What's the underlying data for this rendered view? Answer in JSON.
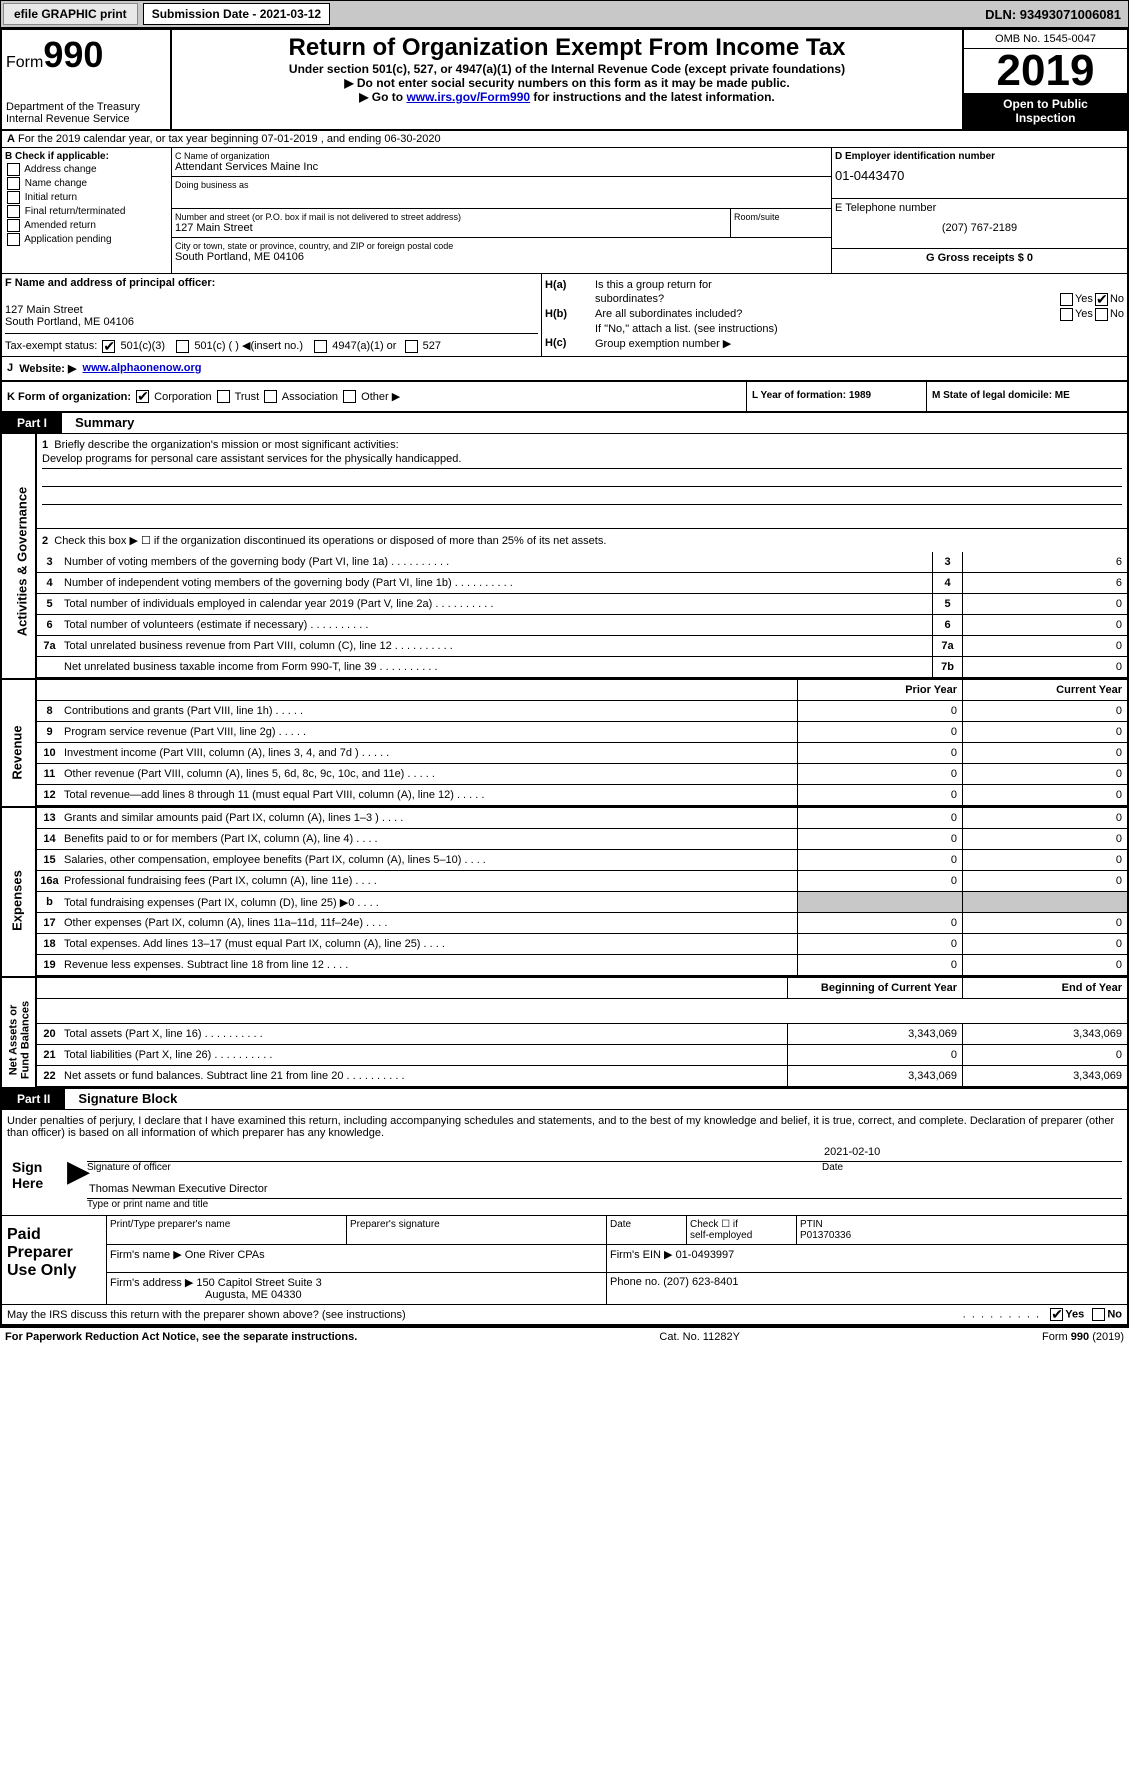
{
  "topbar": {
    "efile": "efile GRAPHIC print",
    "submission": "Submission Date - 2021-03-12",
    "dln": "DLN: 93493071006081"
  },
  "header": {
    "form_prefix": "Form",
    "form_num": "990",
    "title": "Return of Organization Exempt From Income Tax",
    "subtitle": "Under section 501(c), 527, or 4947(a)(1) of the Internal Revenue Code (except private foundations)",
    "warning": "Do not enter social security numbers on this form as it may be made public.",
    "goto": "Go to ",
    "link": "www.irs.gov/Form990",
    "goto_suffix": " for instructions and the latest information.",
    "dept": "Department of the Treasury",
    "irs": "Internal Revenue Service",
    "omb": "OMB No. 1545-0047",
    "year": "2019",
    "inspect1": "Open to Public",
    "inspect2": "Inspection"
  },
  "row_a": "For the 2019 calendar year, or tax year beginning 07-01-2019   , and ending 06-30-2020",
  "section_b": {
    "label": "B Check if applicable:",
    "items": [
      "Address change",
      "Name change",
      "Initial return",
      "Final return/terminated",
      "Amended return",
      "Application pending"
    ]
  },
  "section_c": {
    "name_label": "C Name of organization",
    "name": "Attendant Services Maine Inc",
    "dba_label": "Doing business as",
    "addr_label": "Number and street (or P.O. box if mail is not delivered to street address)",
    "addr": "127 Main Street",
    "room_label": "Room/suite",
    "city_label": "City or town, state or province, country, and ZIP or foreign postal code",
    "city": "South Portland, ME  04106"
  },
  "section_d": {
    "ein_label": "D Employer identification number",
    "ein": "01-0443470",
    "tel_label": "E Telephone number",
    "tel": "(207) 767-2189",
    "gross_label": "G Gross receipts $ 0"
  },
  "section_f": {
    "label": "F  Name and address of principal officer:",
    "addr1": "127 Main Street",
    "addr2": "South Portland, ME  04106"
  },
  "section_h": {
    "ha": "Is this a group return for",
    "ha2": "subordinates?",
    "hb": "Are all subordinates included?",
    "hc_note": "If \"No,\" attach a list. (see instructions)",
    "hc": "Group exemption number ▶"
  },
  "tax_status": {
    "label": "Tax-exempt status:",
    "opt1": "501(c)(3)",
    "opt2": "501(c) (  ) ◀(insert no.)",
    "opt3": "4947(a)(1) or",
    "opt4": "527"
  },
  "website": {
    "label": "Website: ▶",
    "url": "www.alphaonenow.org"
  },
  "row_k": {
    "label": "K Form of organization:",
    "corp": "Corporation",
    "trust": "Trust",
    "assoc": "Association",
    "other": "Other ▶"
  },
  "row_l": "L Year of formation: 1989",
  "row_m": "M State of legal domicile: ME",
  "part1": {
    "header": "Part I",
    "title": "Summary"
  },
  "summary": {
    "line1_label": "Briefly describe the organization's mission or most significant activities:",
    "line1_text": "Develop programs for personal care assistant services for the physically handicapped.",
    "line2": "Check this box ▶ ☐  if the organization discontinued its operations or disposed of more than 25% of its net assets.",
    "lines": [
      {
        "num": "3",
        "desc": "Number of voting members of the governing body (Part VI, line 1a)",
        "box": "3",
        "val": "6"
      },
      {
        "num": "4",
        "desc": "Number of independent voting members of the governing body (Part VI, line 1b)",
        "box": "4",
        "val": "6"
      },
      {
        "num": "5",
        "desc": "Total number of individuals employed in calendar year 2019 (Part V, line 2a)",
        "box": "5",
        "val": "0"
      },
      {
        "num": "6",
        "desc": "Total number of volunteers (estimate if necessary)",
        "box": "6",
        "val": "0"
      },
      {
        "num": "7a",
        "desc": "Total unrelated business revenue from Part VIII, column (C), line 12",
        "box": "7a",
        "val": "0"
      },
      {
        "num": "",
        "desc": "Net unrelated business taxable income from Form 990-T, line 39",
        "box": "7b",
        "val": "0"
      }
    ],
    "col_prior": "Prior Year",
    "col_current": "Current Year",
    "revenue": [
      {
        "num": "8",
        "desc": "Contributions and grants (Part VIII, line 1h)",
        "prior": "0",
        "curr": "0"
      },
      {
        "num": "9",
        "desc": "Program service revenue (Part VIII, line 2g)",
        "prior": "0",
        "curr": "0"
      },
      {
        "num": "10",
        "desc": "Investment income (Part VIII, column (A), lines 3, 4, and 7d )",
        "prior": "0",
        "curr": "0"
      },
      {
        "num": "11",
        "desc": "Other revenue (Part VIII, column (A), lines 5, 6d, 8c, 9c, 10c, and 11e)",
        "prior": "0",
        "curr": "0"
      },
      {
        "num": "12",
        "desc": "Total revenue—add lines 8 through 11 (must equal Part VIII, column (A), line 12)",
        "prior": "0",
        "curr": "0"
      }
    ],
    "expenses": [
      {
        "num": "13",
        "desc": "Grants and similar amounts paid (Part IX, column (A), lines 1–3 )",
        "prior": "0",
        "curr": "0"
      },
      {
        "num": "14",
        "desc": "Benefits paid to or for members (Part IX, column (A), line 4)",
        "prior": "0",
        "curr": "0"
      },
      {
        "num": "15",
        "desc": "Salaries, other compensation, employee benefits (Part IX, column (A), lines 5–10)",
        "prior": "0",
        "curr": "0"
      },
      {
        "num": "16a",
        "desc": "Professional fundraising fees (Part IX, column (A), line 11e)",
        "prior": "0",
        "curr": "0"
      },
      {
        "num": "b",
        "desc": "Total fundraising expenses (Part IX, column (D), line 25) ▶0",
        "prior": "",
        "curr": ""
      },
      {
        "num": "17",
        "desc": "Other expenses (Part IX, column (A), lines 11a–11d, 11f–24e)",
        "prior": "0",
        "curr": "0"
      },
      {
        "num": "18",
        "desc": "Total expenses. Add lines 13–17 (must equal Part IX, column (A), line 25)",
        "prior": "0",
        "curr": "0"
      },
      {
        "num": "19",
        "desc": "Revenue less expenses. Subtract line 18 from line 12",
        "prior": "0",
        "curr": "0"
      }
    ],
    "col_begin": "Beginning of Current Year",
    "col_end": "End of Year",
    "assets": [
      {
        "num": "20",
        "desc": "Total assets (Part X, line 16)",
        "prior": "3,343,069",
        "curr": "3,343,069"
      },
      {
        "num": "21",
        "desc": "Total liabilities (Part X, line 26)",
        "prior": "0",
        "curr": "0"
      },
      {
        "num": "22",
        "desc": "Net assets or fund balances. Subtract line 21 from line 20",
        "prior": "3,343,069",
        "curr": "3,343,069"
      }
    ]
  },
  "part2": {
    "header": "Part II",
    "title": "Signature Block",
    "perjury": "Under penalties of perjury, I declare that I have examined this return, including accompanying schedules and statements, and to the best of my knowledge and belief, it is true, correct, and complete. Declaration of preparer (other than officer) is based on all information of which preparer has any knowledge."
  },
  "sign": {
    "here": "Sign Here",
    "sig_label": "Signature of officer",
    "date": "2021-02-10",
    "date_label": "Date",
    "name": "Thomas Newman Executive Director",
    "name_label": "Type or print name and title"
  },
  "paid": {
    "label": "Paid Preparer Use Only",
    "h1": "Print/Type preparer's name",
    "h2": "Preparer's signature",
    "h3": "Date",
    "h4_a": "Check ☐ if",
    "h4_b": "self-employed",
    "h5": "PTIN",
    "ptin": "P01370336",
    "firm_name_label": "Firm's name    ▶",
    "firm_name": "One River CPAs",
    "firm_ein_label": "Firm's EIN ▶",
    "firm_ein": "01-0493997",
    "firm_addr_label": "Firm's address ▶",
    "firm_addr1": "150 Capitol Street Suite 3",
    "firm_addr2": "Augusta, ME  04330",
    "phone_label": "Phone no.",
    "phone": "(207) 623-8401"
  },
  "footer": {
    "discuss": "May the IRS discuss this return with the preparer shown above? (see instructions)",
    "yes": "Yes",
    "no": "No",
    "paperwork": "For Paperwork Reduction Act Notice, see the separate instructions.",
    "cat": "Cat. No. 11282Y",
    "form": "Form 990 (2019)"
  }
}
